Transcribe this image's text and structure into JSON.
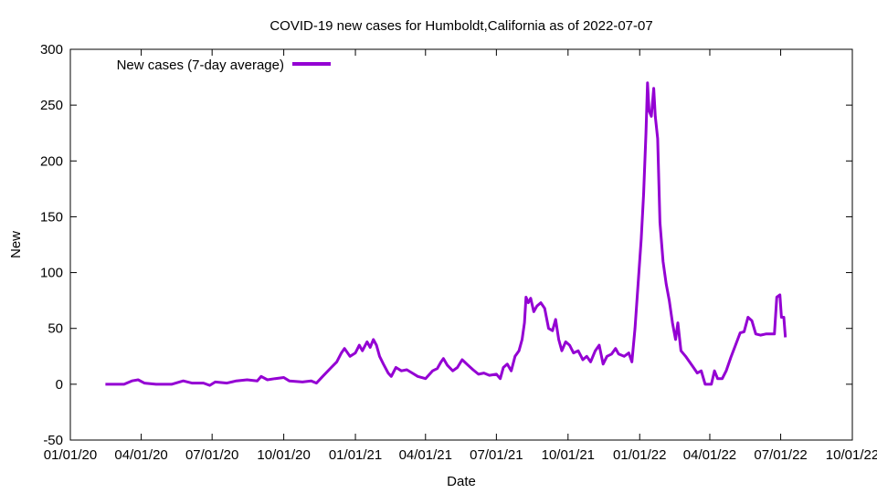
{
  "chart_data": {
    "type": "line",
    "title": "COVID-19 new cases for Humboldt,California as of 2022-07-07",
    "xlabel": "Date",
    "ylabel": "New",
    "xlim": [
      "2020-01-01",
      "2022-10-01"
    ],
    "ylim": [
      -50,
      300
    ],
    "y_ticks": [
      -50,
      0,
      50,
      100,
      150,
      200,
      250,
      300
    ],
    "x_ticks": [
      {
        "date": "2020-01-01",
        "label": "01/01/20"
      },
      {
        "date": "2020-04-01",
        "label": "04/01/20"
      },
      {
        "date": "2020-07-01",
        "label": "07/01/20"
      },
      {
        "date": "2020-10-01",
        "label": "10/01/20"
      },
      {
        "date": "2021-01-01",
        "label": "01/01/21"
      },
      {
        "date": "2021-04-01",
        "label": "04/01/21"
      },
      {
        "date": "2021-07-01",
        "label": "07/01/21"
      },
      {
        "date": "2021-10-01",
        "label": "10/01/21"
      },
      {
        "date": "2022-01-01",
        "label": "01/01/22"
      },
      {
        "date": "2022-04-01",
        "label": "04/01/22"
      },
      {
        "date": "2022-07-01",
        "label": "07/01/22"
      },
      {
        "date": "2022-10-01",
        "label": "10/01/22"
      }
    ],
    "grid": false,
    "legend_position": "top-left",
    "series": [
      {
        "name": "New cases (7-day average)",
        "color": "#9400d3",
        "points": [
          [
            "2020-02-15",
            0
          ],
          [
            "2020-03-10",
            0
          ],
          [
            "2020-03-20",
            3
          ],
          [
            "2020-03-28",
            4
          ],
          [
            "2020-04-05",
            1
          ],
          [
            "2020-04-20",
            0
          ],
          [
            "2020-05-10",
            0
          ],
          [
            "2020-05-25",
            3
          ],
          [
            "2020-06-05",
            1
          ],
          [
            "2020-06-20",
            1
          ],
          [
            "2020-06-28",
            -1
          ],
          [
            "2020-07-05",
            2
          ],
          [
            "2020-07-20",
            1
          ],
          [
            "2020-08-01",
            3
          ],
          [
            "2020-08-15",
            4
          ],
          [
            "2020-08-28",
            3
          ],
          [
            "2020-09-02",
            7
          ],
          [
            "2020-09-10",
            4
          ],
          [
            "2020-09-20",
            5
          ],
          [
            "2020-10-01",
            6
          ],
          [
            "2020-10-08",
            3
          ],
          [
            "2020-10-25",
            2
          ],
          [
            "2020-11-05",
            3
          ],
          [
            "2020-11-12",
            1
          ],
          [
            "2020-11-20",
            7
          ],
          [
            "2020-12-01",
            15
          ],
          [
            "2020-12-08",
            20
          ],
          [
            "2020-12-14",
            28
          ],
          [
            "2020-12-18",
            32
          ],
          [
            "2020-12-25",
            25
          ],
          [
            "2021-01-01",
            28
          ],
          [
            "2021-01-06",
            35
          ],
          [
            "2021-01-10",
            30
          ],
          [
            "2021-01-16",
            38
          ],
          [
            "2021-01-20",
            33
          ],
          [
            "2021-01-24",
            40
          ],
          [
            "2021-01-28",
            35
          ],
          [
            "2021-02-01",
            25
          ],
          [
            "2021-02-06",
            18
          ],
          [
            "2021-02-12",
            10
          ],
          [
            "2021-02-16",
            7
          ],
          [
            "2021-02-22",
            15
          ],
          [
            "2021-03-01",
            12
          ],
          [
            "2021-03-08",
            13
          ],
          [
            "2021-03-15",
            10
          ],
          [
            "2021-03-22",
            7
          ],
          [
            "2021-04-01",
            5
          ],
          [
            "2021-04-10",
            12
          ],
          [
            "2021-04-16",
            14
          ],
          [
            "2021-04-21",
            20
          ],
          [
            "2021-04-24",
            23
          ],
          [
            "2021-04-29",
            17
          ],
          [
            "2021-05-06",
            12
          ],
          [
            "2021-05-12",
            15
          ],
          [
            "2021-05-18",
            22
          ],
          [
            "2021-05-24",
            18
          ],
          [
            "2021-06-01",
            13
          ],
          [
            "2021-06-08",
            9
          ],
          [
            "2021-06-15",
            10
          ],
          [
            "2021-06-22",
            8
          ],
          [
            "2021-07-01",
            9
          ],
          [
            "2021-07-06",
            5
          ],
          [
            "2021-07-10",
            15
          ],
          [
            "2021-07-15",
            18
          ],
          [
            "2021-07-20",
            12
          ],
          [
            "2021-07-25",
            25
          ],
          [
            "2021-07-30",
            30
          ],
          [
            "2021-08-03",
            40
          ],
          [
            "2021-08-06",
            55
          ],
          [
            "2021-08-08",
            78
          ],
          [
            "2021-08-11",
            73
          ],
          [
            "2021-08-14",
            77
          ],
          [
            "2021-08-18",
            65
          ],
          [
            "2021-08-22",
            70
          ],
          [
            "2021-08-27",
            73
          ],
          [
            "2021-09-01",
            68
          ],
          [
            "2021-09-06",
            50
          ],
          [
            "2021-09-11",
            48
          ],
          [
            "2021-09-15",
            58
          ],
          [
            "2021-09-19",
            40
          ],
          [
            "2021-09-23",
            30
          ],
          [
            "2021-09-28",
            38
          ],
          [
            "2021-10-03",
            35
          ],
          [
            "2021-10-08",
            28
          ],
          [
            "2021-10-14",
            30
          ],
          [
            "2021-10-20",
            22
          ],
          [
            "2021-10-25",
            25
          ],
          [
            "2021-10-30",
            20
          ],
          [
            "2021-11-05",
            30
          ],
          [
            "2021-11-10",
            35
          ],
          [
            "2021-11-15",
            18
          ],
          [
            "2021-11-20",
            25
          ],
          [
            "2021-11-26",
            27
          ],
          [
            "2021-12-01",
            32
          ],
          [
            "2021-12-05",
            27
          ],
          [
            "2021-12-12",
            25
          ],
          [
            "2021-12-18",
            28
          ],
          [
            "2021-12-22",
            20
          ],
          [
            "2021-12-26",
            50
          ],
          [
            "2021-12-30",
            90
          ],
          [
            "2022-01-03",
            130
          ],
          [
            "2022-01-06",
            170
          ],
          [
            "2022-01-09",
            225
          ],
          [
            "2022-01-11",
            270
          ],
          [
            "2022-01-13",
            245
          ],
          [
            "2022-01-16",
            240
          ],
          [
            "2022-01-19",
            265
          ],
          [
            "2022-01-21",
            240
          ],
          [
            "2022-01-24",
            220
          ],
          [
            "2022-01-27",
            145
          ],
          [
            "2022-01-31",
            110
          ],
          [
            "2022-02-04",
            90
          ],
          [
            "2022-02-08",
            75
          ],
          [
            "2022-02-12",
            55
          ],
          [
            "2022-02-16",
            40
          ],
          [
            "2022-02-19",
            55
          ],
          [
            "2022-02-23",
            30
          ],
          [
            "2022-03-01",
            25
          ],
          [
            "2022-03-06",
            20
          ],
          [
            "2022-03-11",
            15
          ],
          [
            "2022-03-16",
            10
          ],
          [
            "2022-03-21",
            12
          ],
          [
            "2022-03-26",
            0
          ],
          [
            "2022-04-03",
            0
          ],
          [
            "2022-04-07",
            12
          ],
          [
            "2022-04-11",
            5
          ],
          [
            "2022-04-17",
            5
          ],
          [
            "2022-04-22",
            12
          ],
          [
            "2022-04-28",
            24
          ],
          [
            "2022-05-04",
            35
          ],
          [
            "2022-05-10",
            46
          ],
          [
            "2022-05-15",
            47
          ],
          [
            "2022-05-20",
            60
          ],
          [
            "2022-05-25",
            57
          ],
          [
            "2022-05-30",
            45
          ],
          [
            "2022-06-05",
            44
          ],
          [
            "2022-06-12",
            45
          ],
          [
            "2022-06-18",
            45
          ],
          [
            "2022-06-23",
            45
          ],
          [
            "2022-06-26",
            78
          ],
          [
            "2022-06-30",
            80
          ],
          [
            "2022-07-02",
            60
          ],
          [
            "2022-07-05",
            60
          ],
          [
            "2022-07-07",
            42
          ]
        ]
      }
    ]
  }
}
